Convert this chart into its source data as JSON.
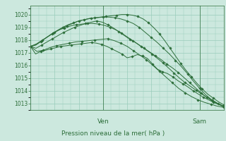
{
  "title": "Pression niveau de la mer( hPa )",
  "bg_color": "#cce8de",
  "grid_color": "#99ccbb",
  "line_color": "#2d6e3a",
  "ylim": [
    1012.5,
    1020.7
  ],
  "yticks": [
    1013,
    1014,
    1015,
    1016,
    1017,
    1018,
    1019,
    1020
  ],
  "xlim": [
    0,
    48
  ],
  "ven_x": 18,
  "sam_x": 42,
  "series": [
    [
      1017.5,
      1016.9,
      1017.1,
      1017.2,
      1017.3,
      1017.4,
      1017.5,
      1017.55,
      1017.6,
      1017.65,
      1017.7,
      1017.75,
      1017.8,
      1017.75,
      1017.65,
      1017.5,
      1017.3,
      1017.1,
      1016.9,
      1016.6,
      1016.7,
      1016.85,
      1016.75,
      1016.55,
      1016.1,
      1015.7,
      1015.5,
      1015.35,
      1015.1,
      1014.8,
      1014.55,
      1014.3,
      1014.0,
      1013.75,
      1013.5,
      1013.3,
      1013.1,
      1012.95,
      1012.8
    ],
    [
      1017.5,
      1017.1,
      1017.2,
      1017.4,
      1017.55,
      1017.65,
      1017.75,
      1017.85,
      1017.9,
      1017.95,
      1018.0,
      1018.05,
      1018.1,
      1017.95,
      1017.75,
      1017.5,
      1017.15,
      1016.8,
      1016.45,
      1016.0,
      1015.55,
      1015.1,
      1014.65,
      1014.2,
      1013.85,
      1013.55,
      1013.3,
      1013.1,
      1012.95,
      1012.8,
      1012.7
    ],
    [
      1017.5,
      1017.35,
      1017.6,
      1017.85,
      1018.1,
      1018.35,
      1018.6,
      1018.8,
      1019.0,
      1019.15,
      1019.3,
      1019.4,
      1019.5,
      1019.4,
      1019.2,
      1018.95,
      1018.65,
      1018.35,
      1018.05,
      1017.8,
      1017.5,
      1017.2,
      1016.9,
      1016.55,
      1016.2,
      1015.8,
      1015.4,
      1015.0,
      1014.65,
      1014.35,
      1014.05,
      1013.75,
      1013.5,
      1013.25,
      1013.0,
      1012.8
    ],
    [
      1017.5,
      1017.6,
      1017.9,
      1018.2,
      1018.5,
      1018.75,
      1019.0,
      1019.2,
      1019.35,
      1019.5,
      1019.6,
      1019.7,
      1019.75,
      1019.8,
      1019.85,
      1019.9,
      1019.95,
      1020.0,
      1020.0,
      1019.95,
      1019.85,
      1019.65,
      1019.35,
      1018.95,
      1018.5,
      1017.95,
      1017.35,
      1016.75,
      1016.15,
      1015.6,
      1015.1,
      1014.6,
      1014.15,
      1013.75,
      1013.45,
      1013.15,
      1012.9
    ],
    [
      1017.5,
      1017.7,
      1018.0,
      1018.3,
      1018.6,
      1018.85,
      1019.1,
      1019.3,
      1019.5,
      1019.6,
      1019.7,
      1019.75,
      1019.8,
      1019.8,
      1019.75,
      1019.65,
      1019.5,
      1019.3,
      1019.0,
      1018.6,
      1018.2,
      1017.8,
      1017.35,
      1016.9,
      1016.4,
      1015.9,
      1015.35,
      1014.75,
      1014.2,
      1013.7,
      1013.3,
      1013.0,
      1012.75
    ],
    [
      1017.5,
      1017.65,
      1017.95,
      1018.25,
      1018.55,
      1018.8,
      1018.95,
      1019.1,
      1019.2,
      1019.25,
      1019.3,
      1019.3,
      1019.25,
      1019.15,
      1019.0,
      1018.8,
      1018.55,
      1018.25,
      1017.95,
      1017.65,
      1017.35,
      1017.05,
      1016.75,
      1016.45,
      1016.1,
      1015.8,
      1015.45,
      1015.05,
      1014.65,
      1014.25,
      1013.85,
      1013.5,
      1013.2,
      1012.95,
      1012.75
    ]
  ]
}
